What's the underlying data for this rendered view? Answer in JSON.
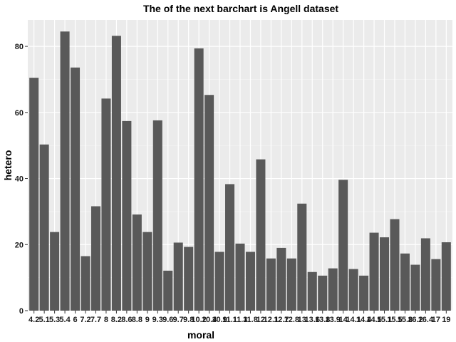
{
  "chart_data": {
    "type": "bar",
    "title": "The of the next barchart is Angell dataset",
    "xlabel": "moral",
    "ylabel": "hetero",
    "ylim": [
      0,
      88
    ],
    "yticks": [
      0,
      20,
      40,
      60,
      80
    ],
    "grid": true,
    "legend": "none",
    "categories": [
      "4.2",
      "5.1",
      "5.3",
      "5.4",
      "6",
      "7.2",
      "7.7",
      "8",
      "8.2",
      "8.6",
      "8.8",
      "9",
      "9.3",
      "9.6",
      "9.7",
      "9.8",
      "10.2",
      "10.4",
      "10.9",
      "11.1",
      "11.3",
      "11.8",
      "12",
      "12.1",
      "12.7",
      "12.8",
      "13",
      "13.6",
      "13.8",
      "13.9",
      "14",
      "14.1",
      "14.4",
      "14.5",
      "15.1",
      "15.5",
      "15.8",
      "16.2",
      "16.4",
      "17",
      "19"
    ],
    "values": [
      70.5,
      50.3,
      23.8,
      84.5,
      73.6,
      16.5,
      31.6,
      64.2,
      83.2,
      57.4,
      29.1,
      23.8,
      57.6,
      12.1,
      20.6,
      19.3,
      79.4,
      65.3,
      17.8,
      38.3,
      20.3,
      17.8,
      45.8,
      15.8,
      19.0,
      15.8,
      32.4,
      11.7,
      10.6,
      12.8,
      39.6,
      12.6,
      10.6,
      23.6,
      22.2,
      27.7,
      17.3,
      13.9,
      21.9,
      15.6,
      20.7
    ],
    "colors": {
      "bar": "#595959",
      "panel": "#ebebeb",
      "grid_major": "#ffffff",
      "grid_minor": "#f5f5f5",
      "text": "#1a1a1a"
    }
  }
}
